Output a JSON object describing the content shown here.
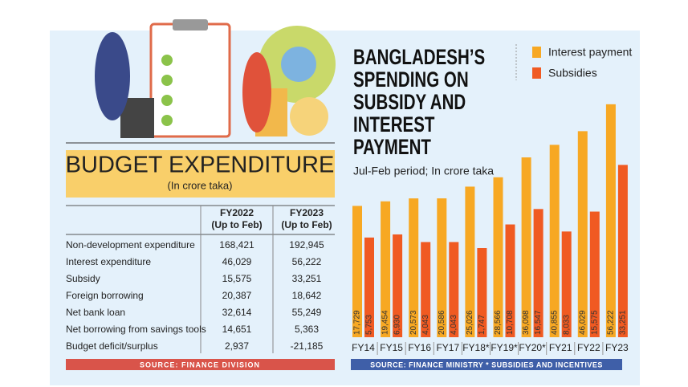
{
  "chart_data": {
    "type": "bar",
    "title": "BANGLADESH’S SPENDING ON SUBSIDY AND INTEREST PAYMENT",
    "subtitle": "Jul-Feb period; In crore taka",
    "categories": [
      "FY14",
      "FY15",
      "FY16",
      "FY17",
      "FY18*",
      "FY19*",
      "FY20*",
      "FY21",
      "FY22",
      "FY23"
    ],
    "series": [
      {
        "name": "Interest payment",
        "color": "#f7a823",
        "values": [
          17729,
          19454,
          20573,
          20586,
          25026,
          28566,
          36098,
          40855,
          46029,
          56222
        ],
        "value_labels": [
          "17,729",
          "19,454",
          "20,573",
          "20,586",
          "25,026",
          "28,566",
          "36,098",
          "40,855",
          "46,029",
          "56,222"
        ]
      },
      {
        "name": "Subsidies",
        "color": "#f05a22",
        "values": [
          5753,
          6930,
          4043,
          4043,
          1747,
          10708,
          16547,
          8033,
          15575,
          33251
        ],
        "value_labels": [
          "5,753",
          "6,930",
          "4,043",
          "4,043",
          "1,747",
          "10,708",
          "16,547",
          "8,033",
          "15,575",
          "33,251"
        ]
      }
    ],
    "ylim": [
      -32000,
      58000
    ],
    "source": "SOURCE: FINANCE MINISTRY * SUBSIDIES AND INCENTIVES"
  },
  "table": {
    "title": "BUDGET EXPENDITURE",
    "subtitle": "(In crore taka)",
    "columns": [
      {
        "year": "FY2022",
        "note": "(Up to Feb)"
      },
      {
        "year": "FY2023",
        "note": "(Up to Feb)"
      }
    ],
    "rows": [
      [
        "Non-development expenditure",
        "168,421",
        "192,945"
      ],
      [
        "Interest expenditure",
        "46,029",
        "56,222"
      ],
      [
        "Subsidy",
        "15,575",
        "33,251"
      ],
      [
        "Foreign borrowing",
        "20,387",
        "18,642"
      ],
      [
        "Net bank loan",
        "32,614",
        "55,249"
      ],
      [
        "Net borrowing from savings tools",
        "14,651",
        "5,363"
      ],
      [
        "Budget deficit/surplus",
        "2,937",
        "-21,185"
      ]
    ],
    "source": "SOURCE: FINANCE DIVISION"
  }
}
